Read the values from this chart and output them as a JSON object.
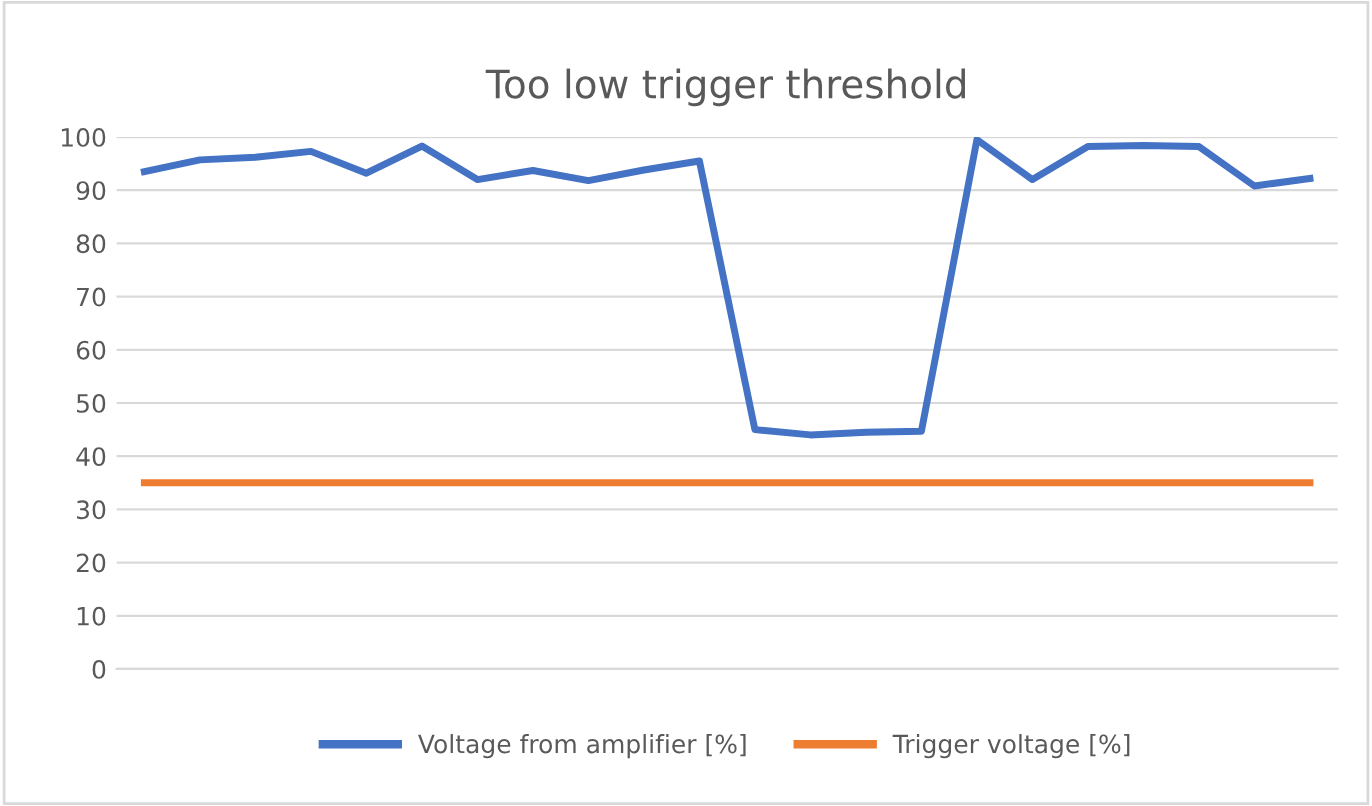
{
  "chart_data": {
    "type": "line",
    "title": "Too low trigger threshold",
    "categories": [
      null,
      null,
      null,
      null,
      null,
      null,
      null,
      null,
      null,
      null,
      null,
      null,
      null,
      null,
      null,
      null,
      null,
      null,
      null,
      null,
      null,
      null
    ],
    "series": [
      {
        "name": "Voltage from amplifier [%]",
        "color": "#4472c4",
        "values": [
          93.5,
          95.7,
          96.2,
          97.3,
          93.2,
          98.3,
          92,
          93.7,
          91.8,
          93.8,
          95.5,
          45,
          44,
          44.5,
          44.7,
          99.5,
          92,
          98.2,
          98.4,
          98.2,
          90.8,
          92.2
        ]
      },
      {
        "name": "Trigger voltage [%]",
        "color": "#ed7d31",
        "values": [
          35,
          35,
          35,
          35,
          35,
          35,
          35,
          35,
          35,
          35,
          35,
          35,
          35,
          35,
          35,
          35,
          35,
          35,
          35,
          35,
          35,
          35
        ]
      }
    ],
    "ylim": [
      0,
      100
    ],
    "yticks": [
      0,
      10,
      20,
      30,
      40,
      50,
      60,
      70,
      80,
      90,
      100
    ],
    "grid": "y",
    "legend": "bottom",
    "marker": "none",
    "line_style": "solid"
  }
}
